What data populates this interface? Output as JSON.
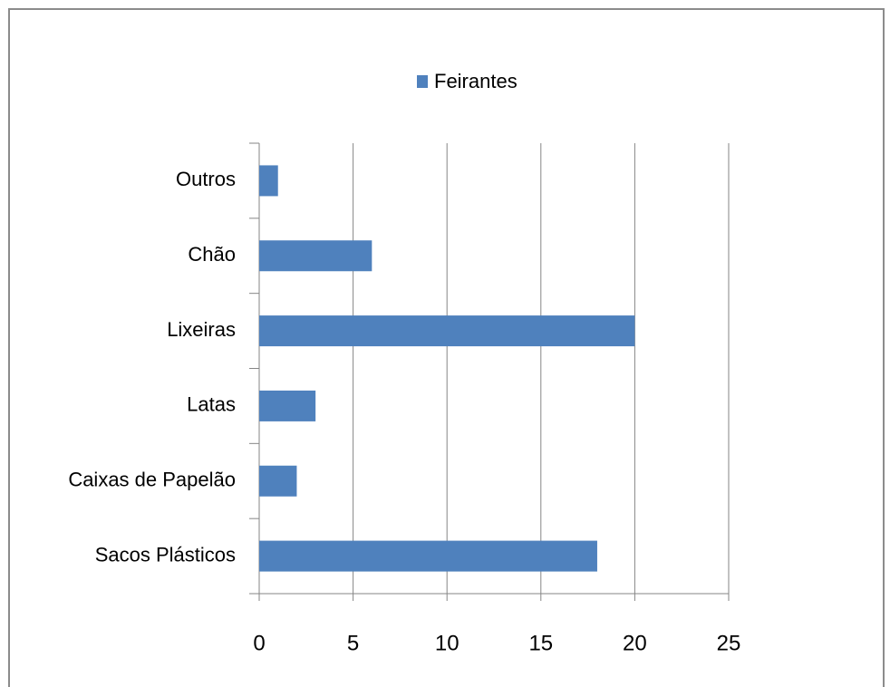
{
  "chart_data": {
    "type": "bar",
    "orientation": "horizontal",
    "categories": [
      "Outros",
      "Chão",
      "Lixeiras",
      "Latas",
      "Caixas de Papelão",
      "Sacos Plásticos"
    ],
    "series": [
      {
        "name": "Feirantes",
        "color": "#4f81bd",
        "values": [
          1,
          6,
          20,
          3,
          2,
          18
        ]
      }
    ],
    "xlim": [
      0,
      25
    ],
    "xticks": [
      0,
      5,
      10,
      15,
      20,
      25
    ],
    "grid": true,
    "legend": "top"
  }
}
